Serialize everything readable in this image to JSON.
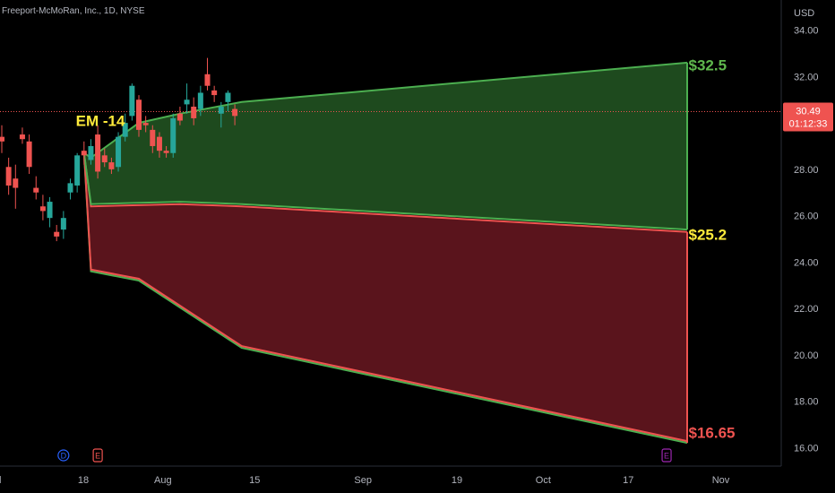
{
  "header": {
    "symbol": "Freeport-McMoRan, Inc., 1D, NYSE",
    "currency": "USD"
  },
  "price_tag": {
    "price": "30.49",
    "countdown": "01:12:33",
    "price_value": 30.49
  },
  "colors": {
    "background": "#000000",
    "up": "#26a69a",
    "down": "#ef5350",
    "upper_band_fill": "#1e4a1e",
    "lower_band_fill": "#5a141c",
    "upper_line": "#4caf50",
    "lower_line": "#ef5350",
    "label_green": "#5fb84d",
    "label_yellow": "#ffeb3b",
    "label_red": "#ef5350"
  },
  "chart_data": {
    "type": "candlestick",
    "title": "Freeport-McMoRan, Inc., 1D, NYSE",
    "ylabel": "USD",
    "ylim": [
      15.2,
      35.3
    ],
    "y_ticks": [
      "16.00",
      "18.00",
      "20.00",
      "22.00",
      "24.00",
      "26.00",
      "28.00",
      "30.00",
      "32.00",
      "34.00"
    ],
    "x_ticks": [
      "Jul",
      "18",
      "Aug",
      "15",
      "Sep",
      "19",
      "Oct",
      "17",
      "Nov"
    ],
    "grid": false,
    "event_markers": [
      {
        "label": "D",
        "x_index": 9,
        "color": "#2962ff"
      },
      {
        "label": "E",
        "x_index": 14,
        "color": "#ef5350"
      },
      {
        "label": "E",
        "x_index": 97,
        "color": "#9c27b0"
      }
    ],
    "candles": [
      {
        "i": 0,
        "o": 29.4,
        "h": 29.9,
        "l": 28.7,
        "c": 29.2
      },
      {
        "i": 1,
        "o": 28.1,
        "h": 28.5,
        "l": 26.9,
        "c": 27.3
      },
      {
        "i": 2,
        "o": 27.6,
        "h": 28.2,
        "l": 26.3,
        "c": 27.2
      },
      {
        "i": 3,
        "o": 29.5,
        "h": 29.8,
        "l": 29.1,
        "c": 29.3
      },
      {
        "i": 4,
        "o": 29.2,
        "h": 29.5,
        "l": 27.8,
        "c": 28.1
      },
      {
        "i": 5,
        "o": 27.2,
        "h": 27.7,
        "l": 26.7,
        "c": 27.0
      },
      {
        "i": 6,
        "o": 26.4,
        "h": 26.9,
        "l": 25.8,
        "c": 26.2
      },
      {
        "i": 7,
        "o": 25.9,
        "h": 26.8,
        "l": 25.5,
        "c": 26.6
      },
      {
        "i": 8,
        "o": 25.3,
        "h": 25.6,
        "l": 24.9,
        "c": 25.1
      },
      {
        "i": 9,
        "o": 25.4,
        "h": 26.2,
        "l": 25.0,
        "c": 25.9
      },
      {
        "i": 10,
        "o": 27.0,
        "h": 27.6,
        "l": 26.7,
        "c": 27.4
      },
      {
        "i": 11,
        "o": 27.3,
        "h": 28.7,
        "l": 27.0,
        "c": 28.6
      },
      {
        "i": 12,
        "o": 28.8,
        "h": 29.2,
        "l": 28.2,
        "c": 28.6
      },
      {
        "i": 13,
        "o": 28.4,
        "h": 29.3,
        "l": 28.2,
        "c": 29.0
      },
      {
        "i": 14,
        "o": 29.5,
        "h": 29.9,
        "l": 27.6,
        "c": 27.9
      },
      {
        "i": 15,
        "o": 28.6,
        "h": 28.9,
        "l": 28.1,
        "c": 28.3
      },
      {
        "i": 16,
        "o": 28.3,
        "h": 28.5,
        "l": 27.8,
        "c": 28.0
      },
      {
        "i": 17,
        "o": 28.1,
        "h": 29.6,
        "l": 27.9,
        "c": 29.4
      },
      {
        "i": 18,
        "o": 29.4,
        "h": 30.4,
        "l": 29.2,
        "c": 30.0
      },
      {
        "i": 19,
        "o": 30.3,
        "h": 31.7,
        "l": 30.1,
        "c": 31.6
      },
      {
        "i": 20,
        "o": 31.0,
        "h": 31.2,
        "l": 29.4,
        "c": 29.7
      },
      {
        "i": 21,
        "o": 30.0,
        "h": 30.3,
        "l": 29.6,
        "c": 29.9
      },
      {
        "i": 22,
        "o": 29.7,
        "h": 29.9,
        "l": 28.7,
        "c": 29.0
      },
      {
        "i": 23,
        "o": 29.4,
        "h": 29.6,
        "l": 28.5,
        "c": 28.8
      },
      {
        "i": 24,
        "o": 28.8,
        "h": 29.0,
        "l": 28.5,
        "c": 28.7
      },
      {
        "i": 25,
        "o": 28.7,
        "h": 30.4,
        "l": 28.5,
        "c": 30.2
      },
      {
        "i": 26,
        "o": 30.4,
        "h": 30.7,
        "l": 29.9,
        "c": 30.1
      },
      {
        "i": 27,
        "o": 30.8,
        "h": 31.7,
        "l": 30.4,
        "c": 31.0
      },
      {
        "i": 28,
        "o": 30.7,
        "h": 31.1,
        "l": 29.9,
        "c": 30.2
      },
      {
        "i": 29,
        "o": 30.6,
        "h": 31.6,
        "l": 30.3,
        "c": 31.3
      },
      {
        "i": 30,
        "o": 32.1,
        "h": 32.8,
        "l": 31.4,
        "c": 31.6
      },
      {
        "i": 31,
        "o": 31.4,
        "h": 31.6,
        "l": 30.9,
        "c": 31.2
      },
      {
        "i": 32,
        "o": 30.4,
        "h": 30.9,
        "l": 29.8,
        "c": 30.7
      },
      {
        "i": 33,
        "o": 30.9,
        "h": 31.4,
        "l": 30.5,
        "c": 31.3
      },
      {
        "i": 34,
        "o": 30.6,
        "h": 30.8,
        "l": 29.9,
        "c": 30.3
      }
    ],
    "bands": {
      "upper_top": [
        [
          12,
          28.7
        ],
        [
          13,
          28.5
        ],
        [
          20,
          30.0
        ],
        [
          26,
          30.4
        ],
        [
          35,
          30.9
        ],
        [
          100,
          32.6
        ]
      ],
      "upper_bottom": [
        [
          12,
          28.7
        ],
        [
          13,
          26.5
        ],
        [
          26,
          26.6
        ],
        [
          35,
          26.5
        ],
        [
          100,
          25.4
        ]
      ],
      "lower_top": [
        [
          12,
          28.7
        ],
        [
          13,
          26.4
        ],
        [
          26,
          26.5
        ],
        [
          35,
          26.4
        ],
        [
          100,
          25.3
        ]
      ],
      "lower_bottom": [
        [
          12,
          28.7
        ],
        [
          13,
          23.6
        ],
        [
          20,
          23.2
        ],
        [
          35,
          20.3
        ],
        [
          100,
          16.2
        ]
      ]
    },
    "annotations": [
      {
        "text": "EM -14",
        "x_index": 10.8,
        "y": 30.1,
        "color": "#ffeb3b"
      },
      {
        "text": "$32.5",
        "x_index": 100.2,
        "y": 32.5,
        "color": "#5fb84d"
      },
      {
        "text": "$25.2",
        "x_index": 100.2,
        "y": 25.2,
        "color": "#ffeb3b"
      },
      {
        "text": "$16.65",
        "x_index": 100.2,
        "y": 16.65,
        "color": "#ef5350"
      }
    ]
  }
}
